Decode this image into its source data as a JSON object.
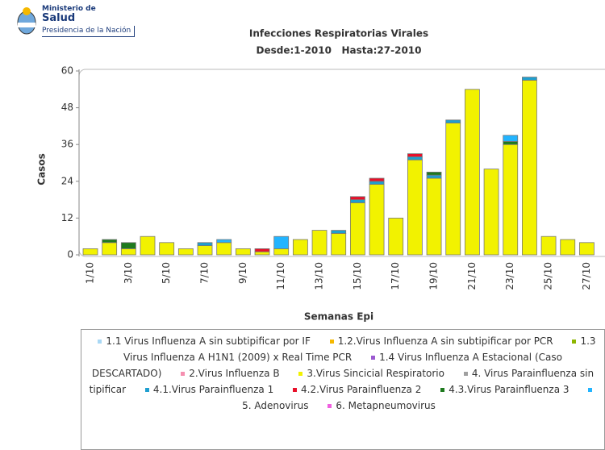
{
  "header": {
    "org_line1": "Ministerio de",
    "org_line2": "Salud",
    "org_line3": "Presidencia de la Nación"
  },
  "chart_data": {
    "type": "stacked_bar",
    "title": "Infecciones Respiratorias Virales",
    "subtitle": "Desde:1-2010   Hasta:27-2010",
    "x_label": "Semanas Epi",
    "y_label": "Casos",
    "categories": [
      "1/10",
      null,
      "3/10",
      null,
      "5/10",
      null,
      "7/10",
      null,
      "9/10",
      null,
      "11/10",
      null,
      "13/10",
      null,
      "15/10",
      null,
      "17/10",
      null,
      "19/10",
      null,
      "21/10",
      null,
      "23/10",
      null,
      "25/10",
      null,
      "27/10"
    ],
    "ylim": [
      0,
      60
    ],
    "yticks": [
      0,
      12,
      24,
      36,
      48,
      60
    ],
    "series": [
      {
        "name": "1.1 Virus Influenza A sin subtipificar por IF",
        "color": "#a9d8f5",
        "values": [
          0,
          0,
          0,
          0,
          0,
          0,
          0,
          0,
          0,
          0,
          0,
          0,
          0,
          0,
          0,
          0,
          0,
          0,
          0,
          0,
          0,
          0,
          0,
          0,
          0,
          0,
          0
        ]
      },
      {
        "name": "1.2.Virus Influenza A sin subtipificar por PCR",
        "color": "#f5b800",
        "values": [
          0,
          0,
          0,
          0,
          0,
          0,
          0,
          0,
          0,
          0,
          0,
          0,
          0,
          0,
          0,
          0,
          0,
          0,
          0,
          0,
          0,
          0,
          0,
          0,
          0,
          0,
          0
        ]
      },
      {
        "name": "1.3 Virus Influenza A H1N1 (2009) x Real Time PCR",
        "color": "#8db600",
        "values": [
          0,
          0,
          0,
          0,
          0,
          0,
          0,
          0,
          0,
          0,
          0,
          0,
          0,
          0,
          0,
          0,
          0,
          0,
          0,
          0,
          0,
          0,
          0,
          0,
          0,
          0,
          0
        ]
      },
      {
        "name": "1.4 Virus Influenza A Estacional (Caso DESCARTADO)",
        "color": "#9b59d0",
        "values": [
          0,
          0,
          0,
          0,
          0,
          0,
          0,
          0,
          0,
          0,
          0,
          0,
          0,
          0,
          0,
          0,
          0,
          0,
          0,
          0,
          0,
          0,
          0,
          0,
          0,
          0,
          0
        ]
      },
      {
        "name": "2.Virus Influenza B",
        "color": "#f58fb0",
        "values": [
          0,
          0,
          0,
          0,
          0,
          0,
          0,
          0,
          0,
          0,
          0,
          0,
          0,
          0,
          0,
          0,
          0,
          0,
          0,
          0,
          0,
          0,
          0,
          0,
          0,
          0,
          0
        ]
      },
      {
        "name": "3.Virus Sincicial Respiratorio",
        "color": "#f2f200",
        "values": [
          2,
          4,
          2,
          6,
          4,
          2,
          3,
          4,
          2,
          1,
          2,
          5,
          8,
          7,
          17,
          23,
          12,
          31,
          25,
          43,
          54,
          28,
          36,
          57,
          6,
          5,
          4
        ]
      },
      {
        "name": "4. Virus Parainfluenza sin tipificar",
        "color": "#a0a0a0",
        "values": [
          0,
          0,
          0,
          0,
          0,
          0,
          0,
          0,
          0,
          0,
          0,
          0,
          0,
          0,
          0,
          0,
          0,
          0,
          0,
          0,
          0,
          0,
          0,
          0,
          0,
          0,
          0
        ]
      },
      {
        "name": "4.1.Virus Parainfluenza 1",
        "color": "#1f9fd0",
        "values": [
          0,
          0,
          0,
          0,
          0,
          0,
          1,
          0,
          0,
          0,
          0,
          0,
          0,
          1,
          1,
          1,
          0,
          1,
          1,
          1,
          0,
          0,
          0,
          1,
          0,
          0,
          0
        ]
      },
      {
        "name": "4.2.Virus Parainfluenza 2",
        "color": "#e8102a",
        "values": [
          0,
          0,
          0,
          0,
          0,
          0,
          0,
          0,
          0,
          1,
          0,
          0,
          0,
          0,
          1,
          1,
          0,
          1,
          0,
          0,
          0,
          0,
          0,
          0,
          0,
          0,
          0
        ]
      },
      {
        "name": "4.3.Virus Parainfluenza 3",
        "color": "#1e7a1e",
        "values": [
          0,
          1,
          2,
          0,
          0,
          0,
          0,
          0,
          0,
          0,
          0,
          0,
          0,
          0,
          0,
          0,
          0,
          0,
          1,
          0,
          0,
          0,
          1,
          0,
          0,
          0,
          0
        ]
      },
      {
        "name": "5. Adenovirus",
        "color": "#22b4ff",
        "values": [
          0,
          0,
          0,
          0,
          0,
          0,
          0,
          1,
          0,
          0,
          4,
          0,
          0,
          0,
          0,
          0,
          0,
          0,
          0,
          0,
          0,
          0,
          2,
          0,
          0,
          0,
          0
        ]
      },
      {
        "name": "6. Metapneumovirus",
        "color": "#f060e0",
        "values": [
          0,
          0,
          0,
          0,
          0,
          0,
          0,
          0,
          0,
          0,
          0,
          0,
          0,
          0,
          0,
          0,
          0,
          0,
          0,
          0,
          0,
          0,
          0,
          0,
          0,
          0,
          0
        ]
      }
    ]
  }
}
